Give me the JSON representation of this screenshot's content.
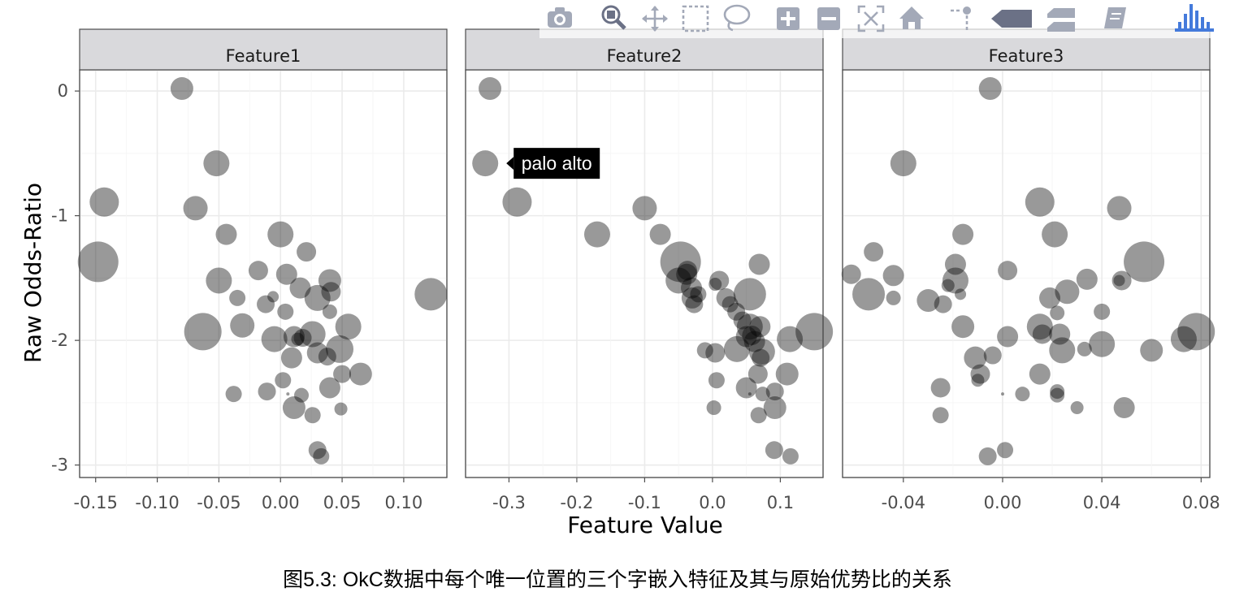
{
  "caption": "图5.3: OkC数据中每个唯一位置的三个字嵌入特征及其与原始优势比的关系",
  "chart_data": {
    "type": "scatter",
    "xlabel": "Feature Value",
    "ylabel": "Raw Odds-Ratio",
    "ylim": [
      -3.1,
      0.17
    ],
    "yticks": [
      0,
      -1,
      -2,
      -3
    ],
    "ytick_labels": [
      "0",
      "-1",
      "-2",
      "-3"
    ],
    "point_color": "#000000",
    "point_opacity": 0.4,
    "panels": [
      {
        "title": "Feature1",
        "xlim": [
          -0.163,
          0.135
        ],
        "xticks": [
          -0.15,
          -0.1,
          -0.05,
          0.0,
          0.05,
          0.1
        ],
        "xtick_labels": [
          "-0.15",
          "-0.10",
          "-0.05",
          "0.00",
          "0.05",
          "0.10"
        ],
        "points": [
          [
            -0.08,
            0.02,
            14
          ],
          [
            -0.052,
            -0.58,
            16
          ],
          [
            -0.143,
            -0.89,
            18
          ],
          [
            -0.069,
            -0.94,
            15
          ],
          [
            -0.148,
            -1.37,
            25
          ],
          [
            -0.044,
            -1.15,
            13
          ],
          [
            0.0,
            -1.15,
            16
          ],
          [
            0.021,
            -1.29,
            12
          ],
          [
            -0.018,
            -1.44,
            12
          ],
          [
            0.005,
            -1.47,
            13
          ],
          [
            -0.05,
            -1.52,
            16
          ],
          [
            0.04,
            -1.52,
            14
          ],
          [
            0.122,
            -1.63,
            20
          ],
          [
            0.016,
            -1.58,
            13
          ],
          [
            0.03,
            -1.66,
            16
          ],
          [
            0.041,
            -1.61,
            12
          ],
          [
            -0.035,
            -1.66,
            10
          ],
          [
            -0.006,
            -1.65,
            7
          ],
          [
            -0.012,
            -1.71,
            11
          ],
          [
            0.004,
            -1.77,
            10
          ],
          [
            0.04,
            -1.77,
            9
          ],
          [
            -0.031,
            -1.88,
            15
          ],
          [
            -0.063,
            -1.93,
            23
          ],
          [
            -0.005,
            -1.99,
            16
          ],
          [
            0.011,
            -1.97,
            13
          ],
          [
            0.018,
            -1.98,
            11
          ],
          [
            0.026,
            -1.95,
            16
          ],
          [
            0.055,
            -1.89,
            16
          ],
          [
            0.009,
            -2.14,
            13
          ],
          [
            0.03,
            -2.1,
            13
          ],
          [
            0.038,
            -2.13,
            11
          ],
          [
            0.048,
            -2.07,
            17
          ],
          [
            0.05,
            -2.27,
            11
          ],
          [
            0.065,
            -2.27,
            14
          ],
          [
            0.002,
            -2.32,
            10
          ],
          [
            0.04,
            -2.38,
            13
          ],
          [
            -0.038,
            -2.43,
            10
          ],
          [
            -0.011,
            -2.41,
            11
          ],
          [
            0.006,
            -2.43,
            2
          ],
          [
            0.017,
            -2.44,
            9
          ],
          [
            0.011,
            -2.54,
            14
          ],
          [
            0.026,
            -2.6,
            10
          ],
          [
            0.049,
            -2.55,
            8
          ],
          [
            0.03,
            -2.88,
            11
          ],
          [
            0.033,
            -2.93,
            10
          ],
          [
            0.014,
            -1.99,
            8
          ]
        ]
      },
      {
        "title": "Feature2",
        "xlim": [
          -0.364,
          0.163
        ],
        "xticks": [
          -0.3,
          -0.2,
          -0.1,
          0.0,
          0.1
        ],
        "xtick_labels": [
          "-0.3",
          "-0.2",
          "-0.1",
          "0.0",
          "0.1"
        ],
        "points": [
          [
            -0.328,
            0.02,
            14
          ],
          [
            -0.335,
            -0.58,
            16
          ],
          [
            -0.288,
            -0.89,
            18
          ],
          [
            -0.1,
            -0.94,
            15
          ],
          [
            -0.17,
            -1.15,
            16
          ],
          [
            -0.077,
            -1.15,
            13
          ],
          [
            -0.047,
            -1.37,
            25
          ],
          [
            -0.037,
            -1.44,
            12
          ],
          [
            0.069,
            -1.39,
            13
          ],
          [
            -0.038,
            -1.47,
            13
          ],
          [
            -0.05,
            -1.52,
            16
          ],
          [
            0.01,
            -1.52,
            12
          ],
          [
            0.055,
            -1.63,
            20
          ],
          [
            -0.031,
            -1.58,
            13
          ],
          [
            -0.021,
            -1.63,
            10
          ],
          [
            -0.03,
            -1.66,
            13
          ],
          [
            -0.027,
            -1.71,
            11
          ],
          [
            0.02,
            -1.66,
            12
          ],
          [
            0.026,
            -1.71,
            10
          ],
          [
            0.004,
            -1.55,
            8
          ],
          [
            0.035,
            -1.77,
            11
          ],
          [
            0.044,
            -1.84,
            11
          ],
          [
            0.055,
            -1.89,
            16
          ],
          [
            0.07,
            -1.89,
            13
          ],
          [
            0.15,
            -1.93,
            23
          ],
          [
            0.114,
            -1.99,
            16
          ],
          [
            0.05,
            -1.97,
            13
          ],
          [
            0.058,
            -1.96,
            12
          ],
          [
            0.062,
            -2.01,
            13
          ],
          [
            0.036,
            -2.07,
            16
          ],
          [
            0.073,
            -2.09,
            16
          ],
          [
            -0.011,
            -2.08,
            10
          ],
          [
            0.004,
            -2.1,
            12
          ],
          [
            0.071,
            -2.14,
            11
          ],
          [
            0.067,
            -2.27,
            12
          ],
          [
            0.11,
            -2.27,
            14
          ],
          [
            0.006,
            -2.32,
            10
          ],
          [
            0.05,
            -2.38,
            13
          ],
          [
            0.055,
            -2.43,
            2
          ],
          [
            0.074,
            -2.43,
            9
          ],
          [
            0.092,
            -2.41,
            11
          ],
          [
            0.002,
            -2.54,
            9
          ],
          [
            0.092,
            -2.54,
            14
          ],
          [
            0.068,
            -2.6,
            10
          ],
          [
            0.091,
            -2.88,
            11
          ],
          [
            0.115,
            -2.93,
            10
          ]
        ]
      },
      {
        "title": "Feature3",
        "xlim": [
          -0.0645,
          0.0835
        ],
        "xticks": [
          -0.04,
          0.0,
          0.04,
          0.08
        ],
        "xtick_labels": [
          "-0.04",
          "0.00",
          "0.04",
          "0.08"
        ],
        "points": [
          [
            -0.005,
            0.02,
            14
          ],
          [
            -0.04,
            -0.58,
            16
          ],
          [
            0.015,
            -0.89,
            18
          ],
          [
            0.047,
            -0.94,
            15
          ],
          [
            -0.016,
            -1.15,
            13
          ],
          [
            0.021,
            -1.15,
            16
          ],
          [
            -0.052,
            -1.29,
            12
          ],
          [
            -0.019,
            -1.39,
            13
          ],
          [
            0.002,
            -1.44,
            12
          ],
          [
            0.057,
            -1.37,
            25
          ],
          [
            -0.061,
            -1.47,
            12
          ],
          [
            -0.044,
            -1.48,
            13
          ],
          [
            -0.019,
            -1.52,
            16
          ],
          [
            -0.022,
            -1.56,
            8
          ],
          [
            0.034,
            -1.51,
            13
          ],
          [
            0.048,
            -1.52,
            12
          ],
          [
            0.047,
            -1.52,
            7
          ],
          [
            -0.054,
            -1.63,
            20
          ],
          [
            -0.044,
            -1.66,
            9
          ],
          [
            -0.017,
            -1.63,
            7
          ],
          [
            0.019,
            -1.66,
            13
          ],
          [
            0.026,
            -1.61,
            15
          ],
          [
            -0.03,
            -1.68,
            14
          ],
          [
            -0.024,
            -1.71,
            11
          ],
          [
            0.022,
            -1.78,
            9
          ],
          [
            0.04,
            -1.77,
            10
          ],
          [
            -0.016,
            -1.89,
            14
          ],
          [
            0.002,
            -1.97,
            13
          ],
          [
            0.015,
            -1.89,
            16
          ],
          [
            0.016,
            -1.95,
            12
          ],
          [
            0.023,
            -1.95,
            13
          ],
          [
            0.024,
            -2.08,
            16
          ],
          [
            0.033,
            -2.07,
            9
          ],
          [
            0.04,
            -2.03,
            16
          ],
          [
            0.078,
            -1.93,
            23
          ],
          [
            0.073,
            -1.99,
            16
          ],
          [
            -0.011,
            -2.14,
            14
          ],
          [
            -0.004,
            -2.12,
            11
          ],
          [
            0.06,
            -2.08,
            14
          ],
          [
            -0.009,
            -2.27,
            12
          ],
          [
            -0.01,
            -2.32,
            8
          ],
          [
            0.015,
            -2.27,
            13
          ],
          [
            -0.025,
            -2.38,
            12
          ],
          [
            0.0,
            -2.43,
            2
          ],
          [
            0.008,
            -2.43,
            9
          ],
          [
            0.022,
            -2.41,
            9
          ],
          [
            0.022,
            -2.44,
            9
          ],
          [
            0.03,
            -2.54,
            8
          ],
          [
            0.049,
            -2.54,
            13
          ],
          [
            -0.025,
            -2.6,
            10
          ],
          [
            0.001,
            -2.88,
            10
          ],
          [
            -0.006,
            -2.93,
            11
          ]
        ]
      }
    ],
    "tooltip": {
      "panel": 1,
      "point": 1,
      "label": "palo alto"
    }
  },
  "modebar": {
    "buttons": [
      {
        "name": "camera-icon"
      },
      {
        "name": "zoom-icon",
        "active": true
      },
      {
        "name": "pan-icon"
      },
      {
        "name": "box-select-icon"
      },
      {
        "name": "lasso-select-icon"
      },
      {
        "name": "zoom-in-icon"
      },
      {
        "name": "zoom-out-icon"
      },
      {
        "name": "autoscale-icon"
      },
      {
        "name": "home-icon"
      },
      {
        "name": "spike-lines-icon"
      },
      {
        "name": "hover-closest-icon"
      },
      {
        "name": "hover-compare-icon"
      },
      {
        "name": "docs-icon"
      },
      {
        "name": "plotly-logo-icon"
      }
    ]
  }
}
